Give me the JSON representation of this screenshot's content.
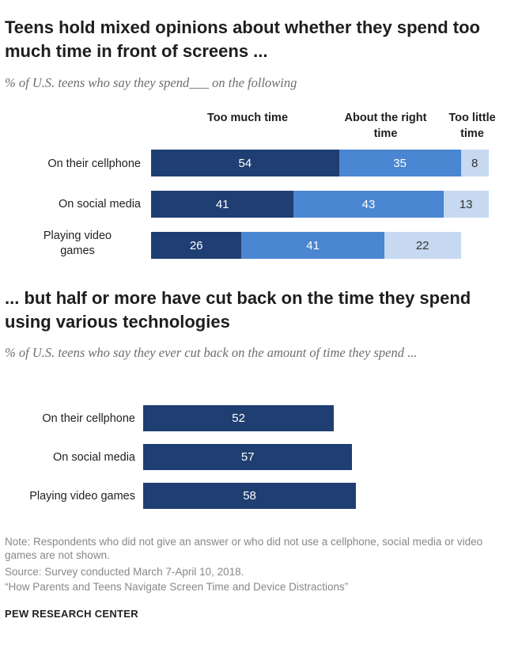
{
  "title1": "Teens hold mixed opinions about whether they spend too much time in front of screens ...",
  "subtitle1": "% of U.S. teens who say they spend___ on the following",
  "title2": "... but half or more have cut back on the time they spend using various technologies",
  "subtitle2": "% of U.S. teens who say they ever cut back on the amount of time they spend ...",
  "note": "Note: Respondents who did not give an answer or who did not use a cellphone, social media or video games are not shown.",
  "source": "Source: Survey conducted March 7-April 10, 2018.",
  "report": "“How Parents and Teens Navigate Screen Time and Device Distractions”",
  "logo": "PEW RESEARCH CENTER",
  "colors": {
    "too_much": "#1f3e72",
    "about_right": "#4a86d1",
    "too_little": "#c6d9f1"
  },
  "chart_data": [
    {
      "type": "bar",
      "stacked": true,
      "orientation": "horizontal",
      "title": "Teens hold mixed opinions about whether they spend too much time in front of screens ...",
      "categories": [
        "On their cellphone",
        "On social media",
        "Playing video games"
      ],
      "series": [
        {
          "name": "Too much time",
          "values": [
            54,
            41,
            26
          ]
        },
        {
          "name": "About the right time",
          "values": [
            35,
            43,
            41
          ]
        },
        {
          "name": "Too little time",
          "values": [
            8,
            13,
            22
          ]
        }
      ],
      "xlim": [
        0,
        100
      ]
    },
    {
      "type": "bar",
      "orientation": "horizontal",
      "title": "... but half or more have cut back on the time they spend using various technologies",
      "categories": [
        "On their cellphone",
        "On social media",
        "Playing video games"
      ],
      "values": [
        52,
        57,
        58
      ],
      "xlim": [
        0,
        100
      ]
    }
  ]
}
